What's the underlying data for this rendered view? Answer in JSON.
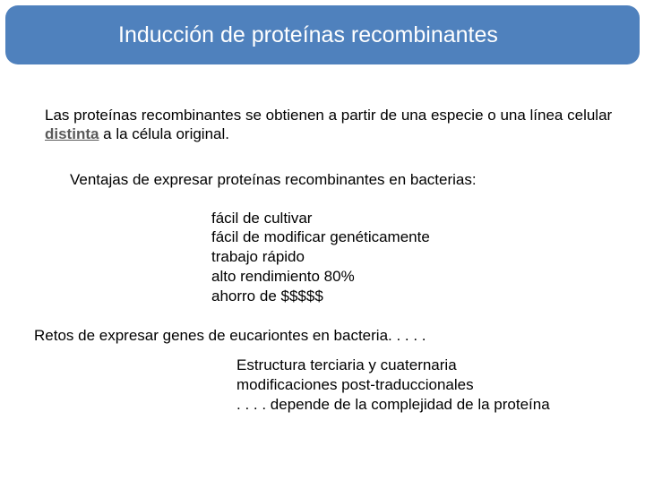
{
  "title": "Inducción de proteínas recombinantes",
  "para1_pre": "Las proteínas recombinantes se obtienen a partir de una especie o una línea celular ",
  "para1_bold": "distinta",
  "para1_post": " a la célula original.",
  "para2": "Ventajas de expresar proteínas recombinantes en bacterias:",
  "advantages": {
    "l1": "fácil de cultivar",
    "l2": "fácil de modificar genéticamente",
    "l3": "trabajo rápido",
    "l4": "alto rendimiento 80%",
    "l5": "ahorro de $$$$$"
  },
  "para3": "Retos de expresar genes de eucariontes en bacteria. . . . .",
  "challenges": {
    "l1": "Estructura terciaria y cuaternaria",
    "l2": "modificaciones post-traduccionales",
    "l3": ". . . . depende de la complejidad de la proteína"
  },
  "colors": {
    "title_bg": "#4f81bd",
    "title_text": "#ffffff",
    "body_text": "#000000",
    "distinta_text": "#5a5a5a"
  }
}
